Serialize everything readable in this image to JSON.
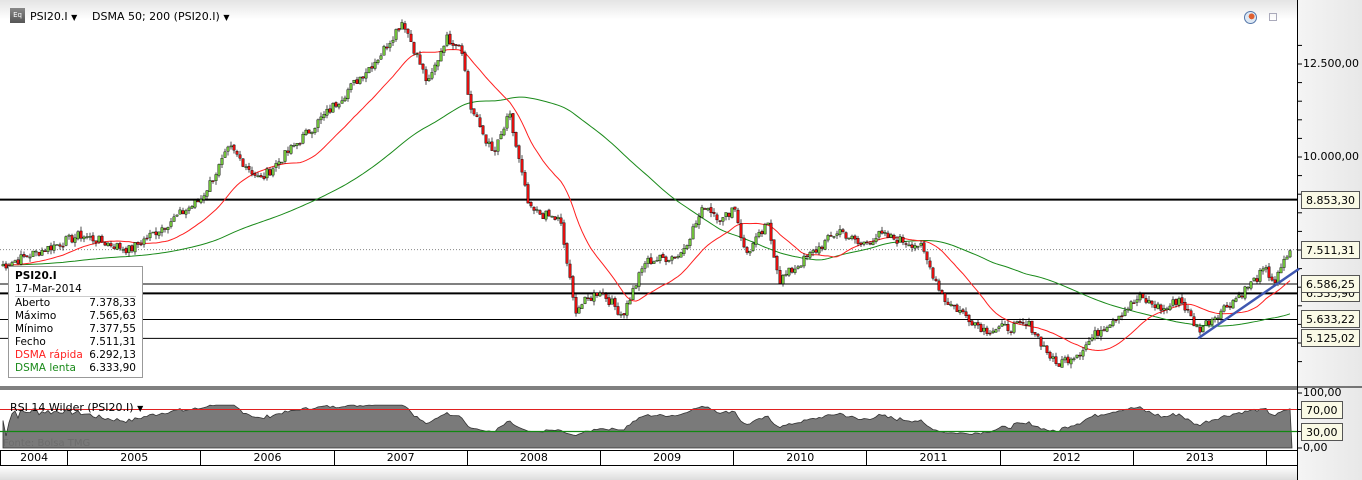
{
  "header": {
    "symbol": "PSI20.I",
    "indicator": "DSMA 50; 200 (PSI20.I)",
    "dropdown_icon": "triangle-down"
  },
  "tooltip": {
    "title": "PSI20.I",
    "date": "17-Mar-2014",
    "rows": [
      {
        "label": "Aberto",
        "value": "7.378,33"
      },
      {
        "label": "Máximo",
        "value": "7.565,63"
      },
      {
        "label": "Mínimo",
        "value": "7.377,55"
      },
      {
        "label": "Fecho",
        "value": "7.511,31"
      },
      {
        "label": "DSMA rápida",
        "value": "6.292,13"
      },
      {
        "label": "DSMA lenta",
        "value": "6.333,90"
      }
    ]
  },
  "rsi": {
    "title": "RSI 14 Wilder (PSI20.I)",
    "watermark": "Fonte: Bolsa TMG",
    "levels": [
      70,
      30
    ],
    "axis_labels": [
      "100,00",
      "70,00",
      "30,00",
      "0,00"
    ]
  },
  "colors": {
    "up": "#6fbf3a",
    "down": "#e01010",
    "fast_ma": "#ff2020",
    "slow_ma": "#1a8a1a",
    "trend": "#3f57b0"
  },
  "chart_data": {
    "type": "candlestick",
    "ylim": [
      3800,
      14200
    ],
    "y_tick_labels": [
      "12.500,00",
      "10.000,00"
    ],
    "x_tick_labels": [
      "2004",
      "2005",
      "2006",
      "2007",
      "2008",
      "2009",
      "2010",
      "2011",
      "2012",
      "2013"
    ],
    "price_path": [
      [
        2004.53,
        7100
      ],
      [
        2005.1,
        7900
      ],
      [
        2005.47,
        7500
      ],
      [
        2006.0,
        8850
      ],
      [
        2006.22,
        10240
      ],
      [
        2006.45,
        9380
      ],
      [
        2006.97,
        11260
      ],
      [
        2007.35,
        12740
      ],
      [
        2007.52,
        13680
      ],
      [
        2007.71,
        11940
      ],
      [
        2007.84,
        13200
      ],
      [
        2007.96,
        13010
      ],
      [
        2008.02,
        11400
      ],
      [
        2008.2,
        10050
      ],
      [
        2008.32,
        11130
      ],
      [
        2008.47,
        8570
      ],
      [
        2008.7,
        8300
      ],
      [
        2008.81,
        5890
      ],
      [
        2009.0,
        6420
      ],
      [
        2009.17,
        5750
      ],
      [
        2009.34,
        7180
      ],
      [
        2009.6,
        7370
      ],
      [
        2009.79,
        8710
      ],
      [
        2009.92,
        8300
      ],
      [
        2010.01,
        8710
      ],
      [
        2010.09,
        7370
      ],
      [
        2010.26,
        8170
      ],
      [
        2010.35,
        6690
      ],
      [
        2010.58,
        7370
      ],
      [
        2010.8,
        8040
      ],
      [
        2010.95,
        7630
      ],
      [
        2011.1,
        7900
      ],
      [
        2011.4,
        7630
      ],
      [
        2011.59,
        6160
      ],
      [
        2011.89,
        5350
      ],
      [
        2012.23,
        5480
      ],
      [
        2012.42,
        4410
      ],
      [
        2012.6,
        4760
      ],
      [
        2012.75,
        5350
      ],
      [
        2013.05,
        6210
      ],
      [
        2013.24,
        5890
      ],
      [
        2013.35,
        6210
      ],
      [
        2013.49,
        5350
      ],
      [
        2013.8,
        6290
      ],
      [
        2013.99,
        6960
      ],
      [
        2014.07,
        6640
      ],
      [
        2014.18,
        7511.31
      ]
    ],
    "horizontal_levels": [
      {
        "value": 8853.3,
        "label": "8.853,30",
        "style": "thick"
      },
      {
        "value": 7511.31,
        "label": "7.511,31",
        "style": "dotted"
      },
      {
        "value": 6586.25,
        "label": "6.586,25",
        "style": "thin"
      },
      {
        "value": 6333.9,
        "label": "6.333,90",
        "style": "thick"
      },
      {
        "value": 5633.22,
        "label": "5.633,22",
        "style": "thin"
      },
      {
        "value": 5125.02,
        "label": "5.125,02",
        "style": "thin"
      }
    ],
    "trendline": [
      [
        2013.49,
        5125
      ],
      [
        2014.25,
        7000
      ]
    ],
    "series": [
      {
        "name": "DSMA rápida"
      },
      {
        "name": "DSMA lenta"
      }
    ]
  }
}
